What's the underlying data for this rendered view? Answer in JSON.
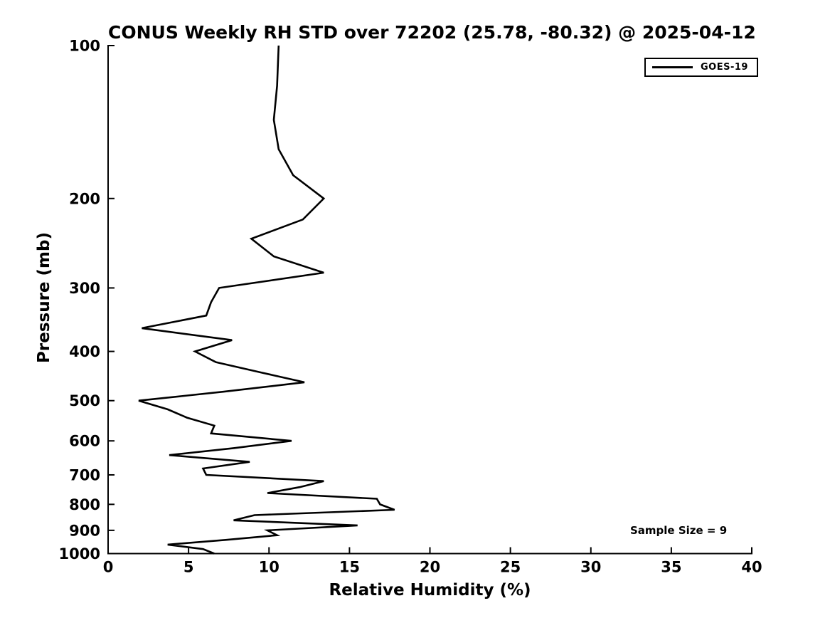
{
  "chart_data": {
    "type": "line",
    "title": "CONUS Weekly RH STD over 72202 (25.78, -80.32) @ 2025-04-12",
    "xlabel": "Relative Humidity (%)",
    "ylabel": "Pressure (mb)",
    "xlim": [
      0,
      40
    ],
    "ylim": [
      100,
      1000
    ],
    "xticks": [
      0,
      5,
      10,
      15,
      20,
      25,
      30,
      35,
      40
    ],
    "yticks": [
      100,
      200,
      300,
      400,
      500,
      600,
      700,
      800,
      900,
      1000
    ],
    "yscale": "log",
    "y_axis_direction": "increasing-downward",
    "grid": false,
    "legend_position": "top-right",
    "annotation": "Sample Size = 9",
    "line_color": "#000000",
    "series": [
      {
        "name": "GOES-19",
        "color": "#000000",
        "pressure_mb": [
          100,
          120,
          140,
          160,
          180,
          200,
          220,
          240,
          260,
          280,
          300,
          320,
          340,
          360,
          380,
          400,
          420,
          440,
          460,
          480,
          500,
          520,
          540,
          560,
          580,
          600,
          620,
          640,
          660,
          680,
          700,
          720,
          740,
          760,
          780,
          800,
          820,
          840,
          860,
          880,
          900,
          920,
          940,
          960,
          980,
          1000
        ],
        "rh_std_pct": [
          10.6,
          10.5,
          10.3,
          10.6,
          11.5,
          13.4,
          12.1,
          8.9,
          10.3,
          13.4,
          6.9,
          6.4,
          6.1,
          2.1,
          7.7,
          5.4,
          6.7,
          9.5,
          12.2,
          7.2,
          1.9,
          3.7,
          4.9,
          6.6,
          6.4,
          11.4,
          7.8,
          3.8,
          8.8,
          5.9,
          6.1,
          13.4,
          11.9,
          9.9,
          16.7,
          16.9,
          17.8,
          9.1,
          7.8,
          15.5,
          9.9,
          10.5,
          7.3,
          3.7,
          5.9,
          6.6
        ]
      }
    ]
  }
}
